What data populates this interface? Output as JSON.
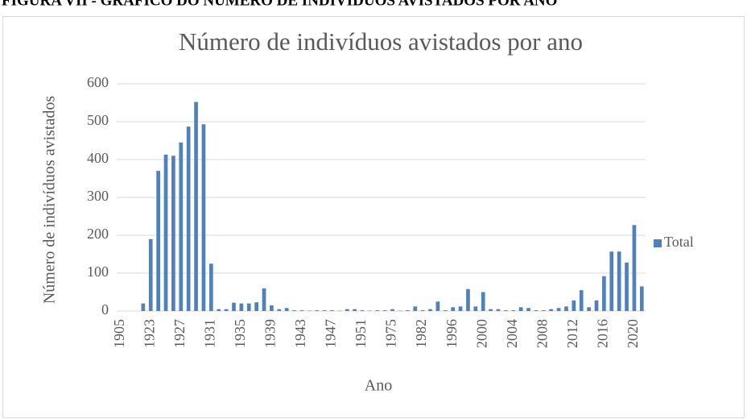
{
  "heading": "FIGURA VII - GRÁFICO DO NÚMERO DE INDIVÍDUOS AVISTADOS POR ANO",
  "chart_data": {
    "type": "bar",
    "title": "Número de indivíduos avistados por ano",
    "x_label": "Ano",
    "y_label": "Número de indivíduos avistados",
    "categories": [
      "1905",
      null,
      null,
      null,
      "1923",
      null,
      null,
      null,
      "1927",
      null,
      null,
      null,
      "1931",
      null,
      null,
      null,
      "1935",
      null,
      null,
      null,
      "1939",
      null,
      null,
      null,
      "1943",
      null,
      null,
      null,
      "1947",
      null,
      null,
      null,
      "1951",
      null,
      null,
      null,
      "1975",
      null,
      null,
      null,
      "1982",
      null,
      null,
      null,
      "1996",
      null,
      null,
      null,
      "2000",
      null,
      null,
      null,
      "2004",
      null,
      null,
      null,
      "2008",
      null,
      null,
      null,
      "2012",
      null,
      null,
      null,
      "2016",
      null,
      null,
      null,
      "2020",
      null
    ],
    "series": [
      {
        "name": "Total",
        "color": "#4f81bd",
        "values": [
          0,
          0,
          0,
          20,
          190,
          370,
          413,
          410,
          445,
          487,
          552,
          493,
          125,
          5,
          5,
          22,
          20,
          20,
          23,
          60,
          15,
          5,
          8,
          2,
          2,
          1,
          2,
          2,
          2,
          1,
          5,
          5,
          2,
          1,
          2,
          2,
          5,
          1,
          2,
          12,
          2,
          5,
          25,
          2,
          10,
          12,
          58,
          12,
          50,
          5,
          5,
          2,
          2,
          10,
          8,
          2,
          2,
          5,
          8,
          12,
          28,
          55,
          10,
          28,
          92,
          157,
          157,
          128,
          227,
          65
        ]
      }
    ],
    "ylim": [
      0,
      600
    ],
    "yticks": [
      0,
      100,
      200,
      300,
      400,
      500,
      600
    ],
    "grid": true,
    "legend": "right"
  }
}
